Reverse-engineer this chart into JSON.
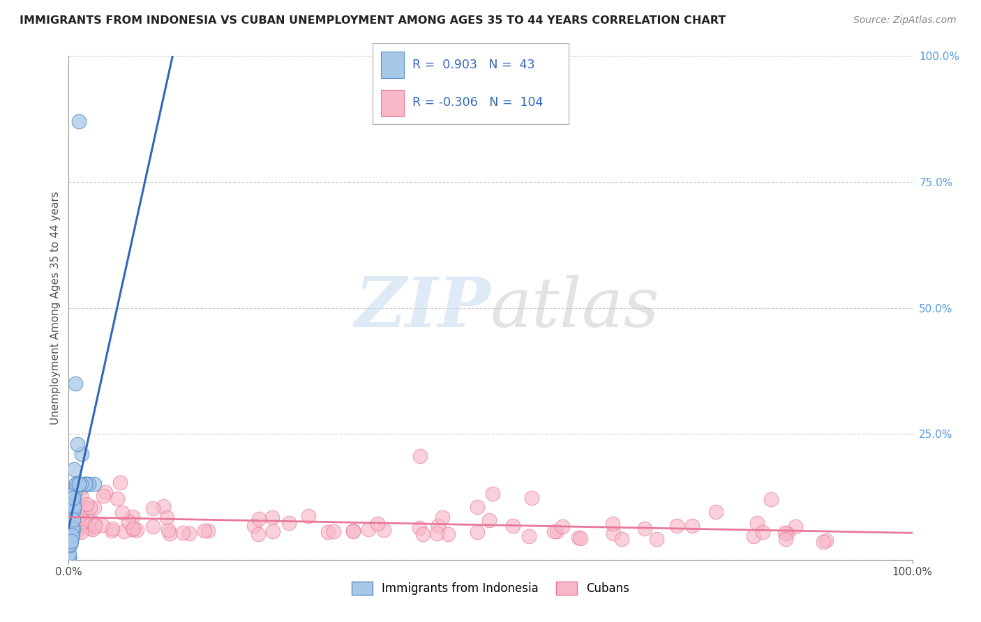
{
  "title": "IMMIGRANTS FROM INDONESIA VS CUBAN UNEMPLOYMENT AMONG AGES 35 TO 44 YEARS CORRELATION CHART",
  "source": "Source: ZipAtlas.com",
  "ylabel": "Unemployment Among Ages 35 to 44 years",
  "ytick_vals": [
    0.0,
    0.25,
    0.5,
    0.75,
    1.0
  ],
  "ytick_labels": [
    "",
    "25.0%",
    "50.0%",
    "75.0%",
    "100.0%"
  ],
  "blue_R": 0.903,
  "blue_N": 43,
  "pink_R": -0.306,
  "pink_N": 104,
  "legend_label_blue": "Immigrants from Indonesia",
  "legend_label_pink": "Cubans",
  "background_color": "#ffffff",
  "blue_color": "#a8c8e8",
  "blue_edge_color": "#5590c8",
  "blue_line_color": "#3366bb",
  "pink_color": "#f8b8c8",
  "pink_edge_color": "#e87898",
  "pink_line_color": "#e87898",
  "grid_color": "#cccccc",
  "axis_color": "#999999",
  "right_tick_color": "#5599dd",
  "title_color": "#222222",
  "source_color": "#888888",
  "watermark_zip_color": "#c8ddf0",
  "watermark_atlas_color": "#c8c8c8"
}
